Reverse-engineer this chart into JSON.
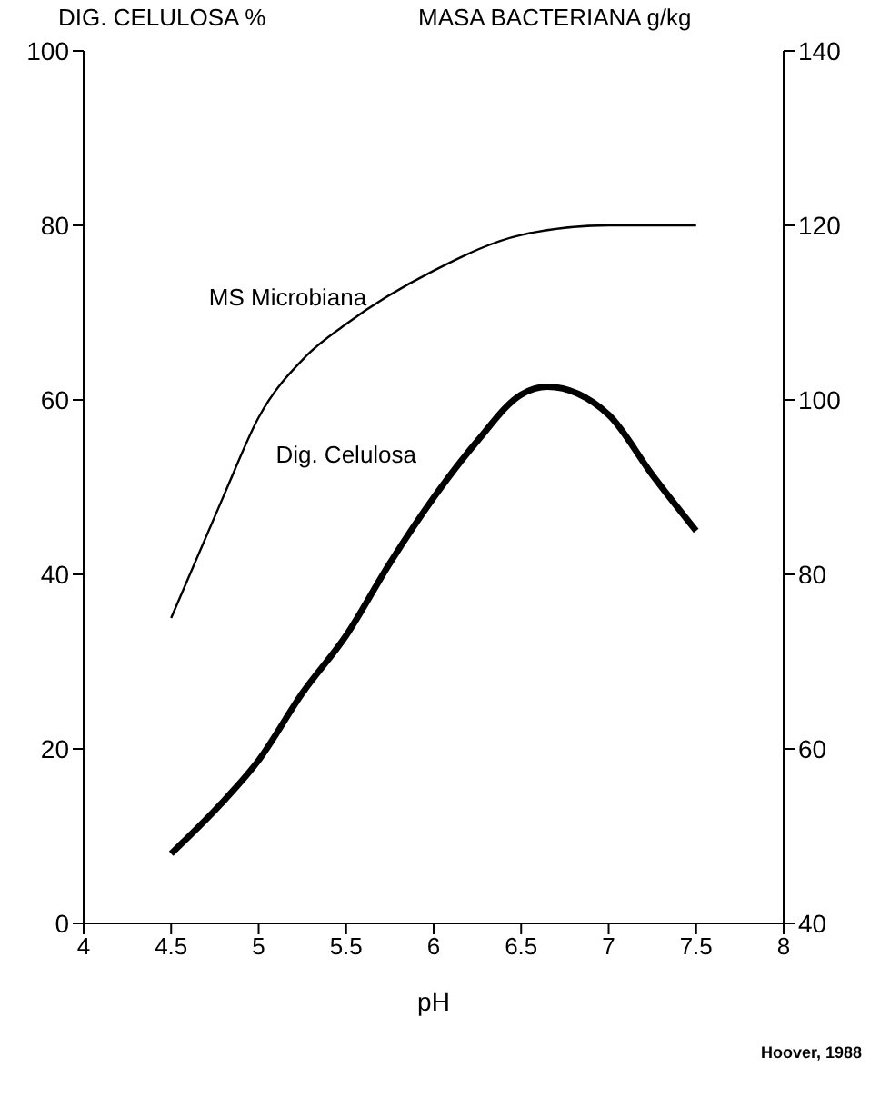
{
  "chart_data": {
    "type": "line",
    "ylabel": "DIG. CELULOSA %",
    "y2label": "MASA BACTERIANA g/kg",
    "xlabel": "pH",
    "xlim": [
      4,
      8
    ],
    "xticks": [
      4,
      4.5,
      5,
      5.5,
      6,
      6.5,
      7,
      7.5,
      8
    ],
    "ylim": [
      0,
      100
    ],
    "yticks": [
      0,
      20,
      40,
      60,
      80,
      100
    ],
    "y2lim": [
      40,
      140
    ],
    "y2ticks": [
      40,
      60,
      80,
      100,
      120,
      140
    ],
    "marker": "none",
    "line_style": "solid",
    "series": [
      {
        "name": "MS Microbiana",
        "color": "#000000",
        "axis": "y2",
        "x": [
          4.5,
          4.8,
          5.0,
          5.27,
          5.5,
          6.0,
          6.5,
          7.0,
          7.5
        ],
        "values": [
          75,
          89,
          98,
          105,
          108.7,
          114.8,
          118.9,
          120,
          120
        ]
      },
      {
        "name": "Dig. Celulosa",
        "color": "#000000",
        "x": [
          4.5,
          4.78,
          5.0,
          5.25,
          5.5,
          5.75,
          6.0,
          6.25,
          6.5,
          6.65,
          7.0,
          7.25,
          7.5
        ],
        "values": [
          8,
          13.6,
          18.7,
          26.4,
          33,
          41.3,
          48.8,
          55.3,
          60.6,
          61.5,
          58.3,
          51.4,
          45
        ]
      }
    ],
    "annotations": [
      "Hoover, 1988"
    ]
  }
}
